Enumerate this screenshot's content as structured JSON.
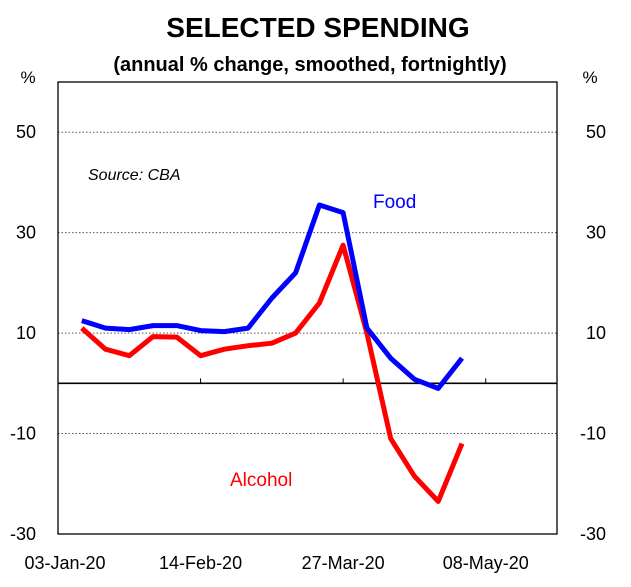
{
  "chart_data": {
    "type": "line",
    "title": "SELECTED SPENDING",
    "subtitle": "(annual % change, smoothed, fortnightly)",
    "left_unit": "%",
    "right_unit": "%",
    "source": "Source: CBA",
    "ylim": [
      -30,
      60
    ],
    "yticks": [
      50,
      30,
      10,
      -10,
      -30
    ],
    "ytick_labels": [
      "50",
      "30",
      "10",
      "-10",
      "-30"
    ],
    "xlim": [
      0,
      21
    ],
    "xtick_labels": [
      "03-Jan-20",
      "14-Feb-20",
      "27-Mar-20",
      "08-May-20"
    ],
    "xtick_positions": [
      0,
      6,
      12,
      18
    ],
    "grid": true,
    "zero_line": true,
    "series": [
      {
        "name": "Food",
        "color": "#0000ff",
        "x": [
          1,
          2,
          3,
          4,
          5,
          6,
          7,
          8,
          9,
          10,
          11,
          12,
          13,
          14,
          15,
          16,
          17
        ],
        "values": [
          12.5,
          11,
          10.7,
          11.5,
          11.5,
          10.5,
          10.3,
          11,
          17,
          22,
          35.5,
          34,
          11,
          5,
          0.8,
          -1,
          5
        ]
      },
      {
        "name": "Alcohol",
        "color": "#ff0000",
        "x": [
          1,
          2,
          3,
          4,
          5,
          6,
          7,
          8,
          9,
          10,
          11,
          12,
          13,
          14,
          15,
          16,
          17
        ],
        "values": [
          11,
          6.8,
          5.5,
          9.3,
          9.2,
          5.5,
          6.8,
          7.5,
          8,
          10,
          16,
          27.5,
          10,
          -11,
          -18.5,
          -23.5,
          -12
        ]
      }
    ]
  }
}
